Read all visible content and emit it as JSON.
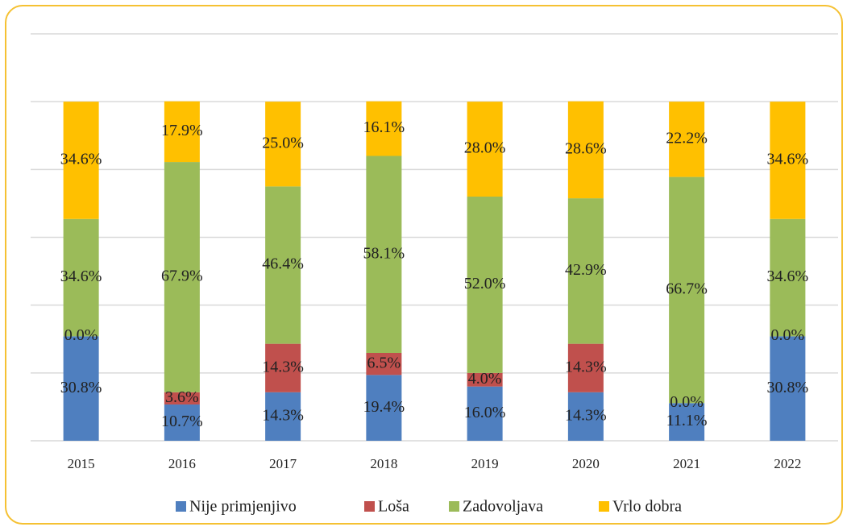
{
  "chart_data": {
    "type": "stacked_bar",
    "categories": [
      "2015",
      "2016",
      "2017",
      "2018",
      "2019",
      "2020",
      "2021",
      "2022"
    ],
    "series": [
      {
        "name": "Nije primjenjivo",
        "color": "#4f7fbf",
        "values": [
          30.8,
          10.7,
          14.3,
          19.4,
          16.0,
          14.3,
          11.1,
          30.8
        ],
        "value_labels": [
          "30.8%",
          "10.7%",
          "14.3%",
          "19.4%",
          "16.0%",
          "14.3%",
          "11.1%",
          "30.8%"
        ]
      },
      {
        "name": "Loša",
        "color": "#c0504d",
        "values": [
          0.0,
          3.6,
          14.3,
          6.5,
          4.0,
          14.3,
          0.0,
          0.0
        ],
        "value_labels": [
          "0.0%",
          "3.6%",
          "14.3%",
          "6.5%",
          "4.0%",
          "14.3%",
          "0.0%",
          "0.0%"
        ]
      },
      {
        "name": "Zadovoljava",
        "color": "#9bbb59",
        "values": [
          34.6,
          67.9,
          46.4,
          58.1,
          52.0,
          42.9,
          66.7,
          34.6
        ],
        "value_labels": [
          "34.6%",
          "67.9%",
          "46.4%",
          "58.1%",
          "52.0%",
          "42.9%",
          "66.7%",
          "34.6%"
        ]
      },
      {
        "name": "Vrlo dobra",
        "color": "#ffc000",
        "values": [
          34.6,
          17.9,
          25.0,
          16.1,
          28.0,
          28.6,
          22.2,
          34.6
        ],
        "value_labels": [
          "34.6%",
          "17.9%",
          "25.0%",
          "16.1%",
          "28.0%",
          "28.6%",
          "22.2%",
          "34.6%"
        ]
      }
    ],
    "ylim": [
      0,
      120
    ],
    "yticks": [
      0,
      20,
      40,
      60,
      80,
      100,
      120
    ],
    "grid": true,
    "legend": "bottom"
  }
}
